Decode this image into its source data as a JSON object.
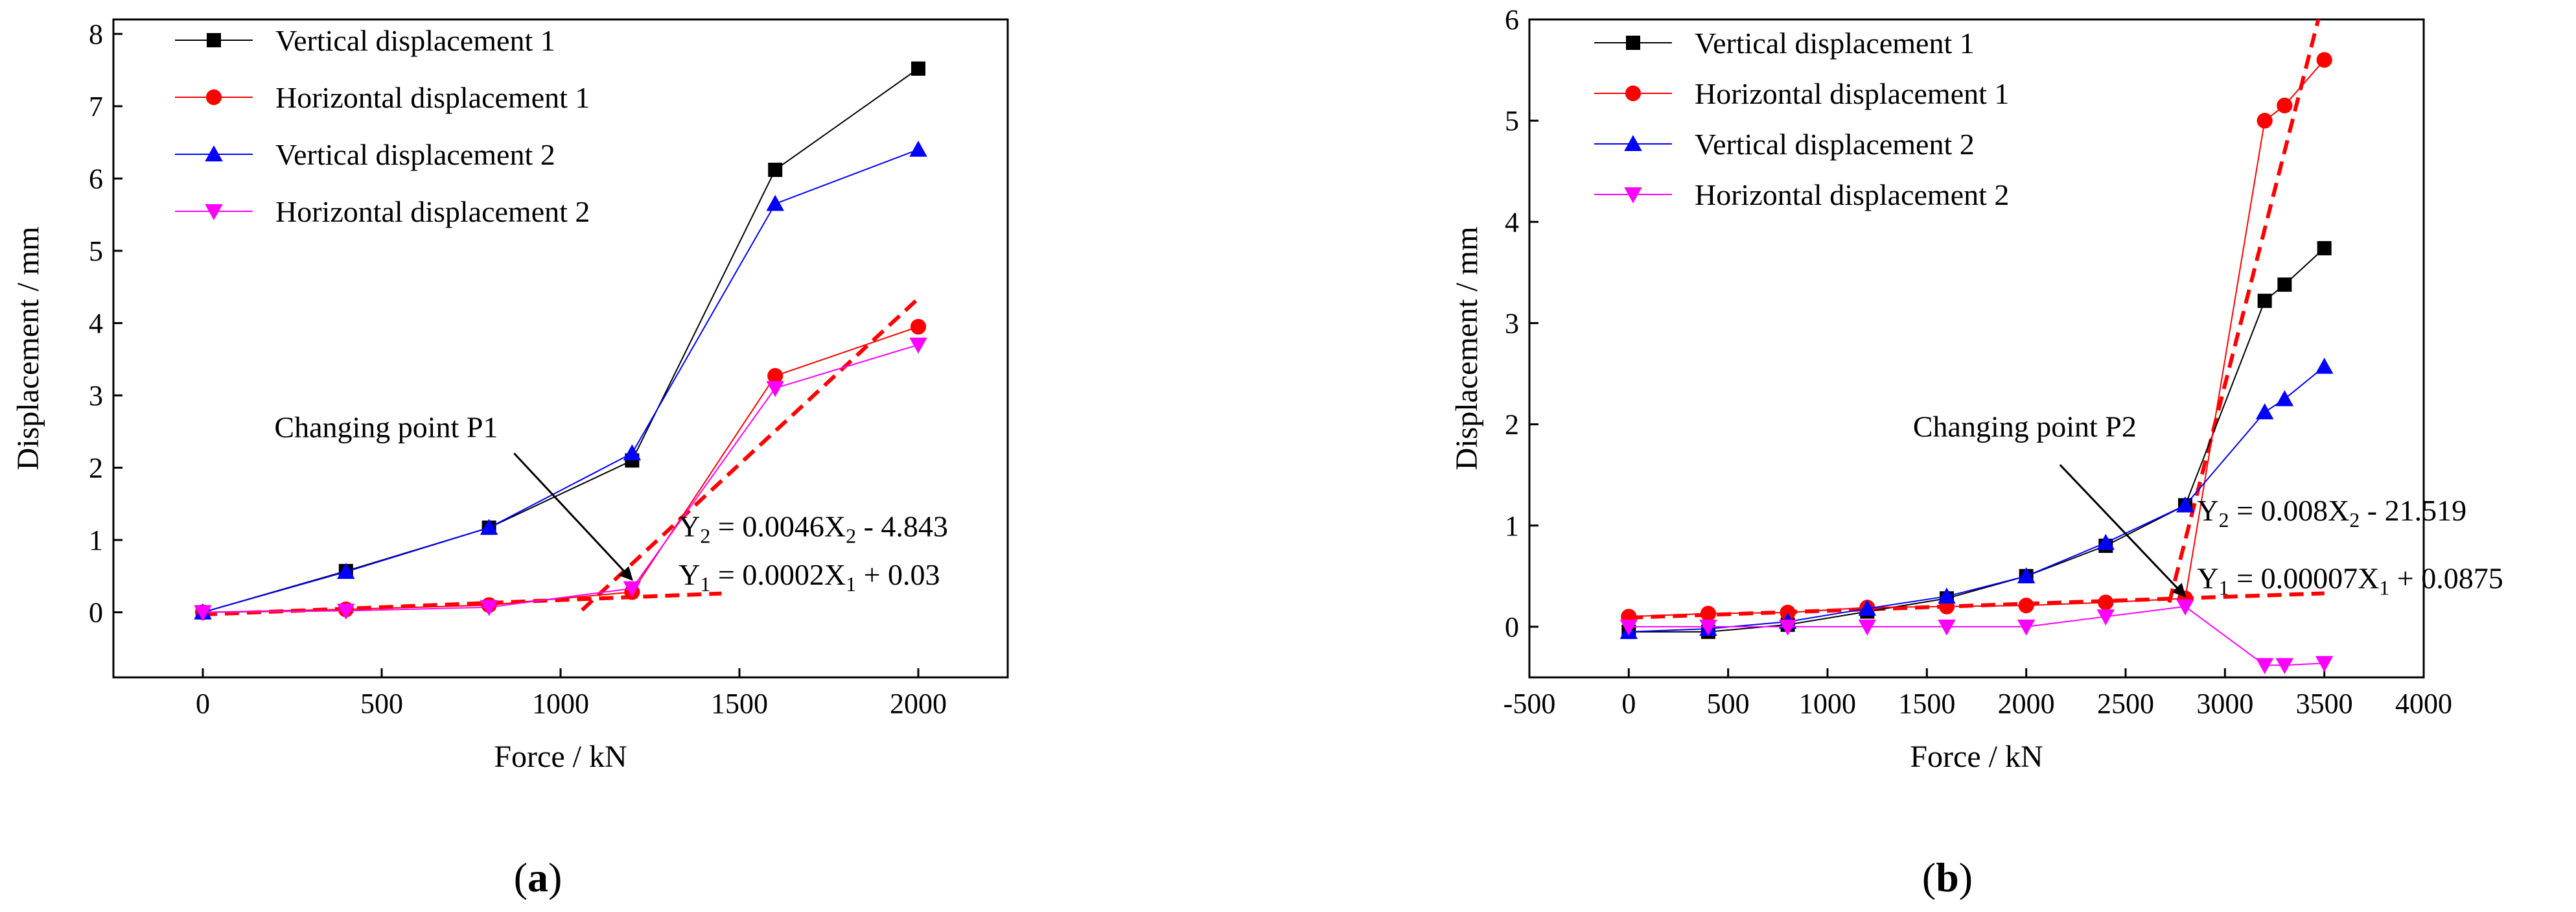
{
  "chart_data": [
    {
      "type": "line",
      "panel_label": "a",
      "panel_open": "(",
      "panel_close": ")",
      "xlabel": "Force / kN",
      "ylabel": "Displacement / mm",
      "xlim": [
        -250,
        2250
      ],
      "ylim": [
        -0.9,
        8.2
      ],
      "xticks": [
        0,
        500,
        1000,
        1500,
        2000
      ],
      "yticks": [
        0,
        1,
        2,
        3,
        4,
        5,
        6,
        7,
        8
      ],
      "legend_position": "top-left",
      "series": [
        {
          "name": "Vertical displacement 1",
          "color": "#000000",
          "marker": "square",
          "x": [
            0,
            400,
            800,
            1200,
            1600,
            2000
          ],
          "y": [
            0,
            0.57,
            1.17,
            2.1,
            6.12,
            7.52
          ]
        },
        {
          "name": "Horizontal displacement 1",
          "color": "#ff0000",
          "marker": "circle",
          "x": [
            0,
            400,
            800,
            1200,
            1600,
            2000
          ],
          "y": [
            0,
            0.04,
            0.1,
            0.28,
            3.27,
            3.95
          ]
        },
        {
          "name": "Vertical displacement 2",
          "color": "#0000ff",
          "marker": "triangle-up",
          "x": [
            0,
            400,
            800,
            1200,
            1600,
            2000
          ],
          "y": [
            0,
            0.56,
            1.17,
            2.2,
            5.65,
            6.4
          ]
        },
        {
          "name": "Horizontal displacement 2",
          "color": "#ff00ff",
          "marker": "triangle-down",
          "x": [
            0,
            400,
            800,
            1200,
            1600,
            2000
          ],
          "y": [
            0,
            0.02,
            0.07,
            0.33,
            3.1,
            3.7
          ]
        }
      ],
      "fit_lines": [
        {
          "name": "Y1 fit",
          "color": "#ff0000",
          "x": [
            0,
            1450
          ],
          "y": [
            -0.03,
            0.26
          ]
        },
        {
          "name": "Y2 fit",
          "color": "#ff0000",
          "x": [
            1060,
            2000
          ],
          "y": [
            0.03,
            4.34
          ]
        }
      ],
      "equations": [
        {
          "lhs": "Y",
          "lhs_sub": "2",
          "mid": " = 0.0046X",
          "var_sub": "2",
          "rest": " - 4.843",
          "x": 1330,
          "y": 1.05
        },
        {
          "lhs": "Y",
          "lhs_sub": "1",
          "mid": " = 0.0002X",
          "var_sub": "1",
          "rest": " + 0.03",
          "x": 1330,
          "y": 0.38
        }
      ],
      "annotation": {
        "text": "Changing point P1",
        "text_x": 200,
        "text_y": 2.42,
        "arrow_from": [
          870,
          2.2
        ],
        "arrow_to": [
          1200,
          0.45
        ]
      }
    },
    {
      "type": "line",
      "panel_label": "b",
      "panel_open": "(",
      "panel_close": ")",
      "xlabel": "Force / kN",
      "ylabel": "Displacement / mm",
      "xlim": [
        -500,
        4000
      ],
      "ylim": [
        -0.5,
        6
      ],
      "xticks": [
        -500,
        0,
        500,
        1000,
        1500,
        2000,
        2500,
        3000,
        3500,
        4000
      ],
      "yticks": [
        0,
        1,
        2,
        3,
        4,
        5,
        6
      ],
      "legend_position": "top-left",
      "series": [
        {
          "name": "Vertical displacement 1",
          "color": "#000000",
          "marker": "square",
          "x": [
            0,
            400,
            800,
            1200,
            1600,
            2000,
            2400,
            2800,
            3200,
            3300,
            3500
          ],
          "y": [
            -0.05,
            -0.05,
            0.02,
            0.15,
            0.28,
            0.5,
            0.8,
            1.2,
            3.22,
            3.38,
            3.74
          ]
        },
        {
          "name": "Horizontal displacement 1",
          "color": "#ff0000",
          "marker": "circle",
          "x": [
            0,
            400,
            800,
            1200,
            1600,
            2000,
            2400,
            2800,
            3200,
            3300,
            3500
          ],
          "y": [
            0.1,
            0.13,
            0.14,
            0.19,
            0.2,
            0.21,
            0.24,
            0.28,
            5.0,
            5.15,
            5.6
          ]
        },
        {
          "name": "Vertical displacement 2",
          "color": "#0000ff",
          "marker": "triangle-up",
          "x": [
            0,
            400,
            800,
            1200,
            1600,
            2000,
            2400,
            2800,
            3200,
            3300,
            3500
          ],
          "y": [
            -0.05,
            -0.02,
            0.05,
            0.18,
            0.3,
            0.5,
            0.83,
            1.2,
            2.12,
            2.25,
            2.57
          ]
        },
        {
          "name": "Horizontal displacement 2",
          "color": "#ff00ff",
          "marker": "triangle-down",
          "x": [
            0,
            400,
            800,
            1200,
            1600,
            2000,
            2400,
            2800,
            3200,
            3300,
            3500
          ],
          "y": [
            0,
            0,
            0,
            0,
            0,
            0,
            0.1,
            0.2,
            -0.38,
            -0.38,
            -0.36
          ]
        },
        {
          "name": "",
          "color": "#ff00ff",
          "marker": "none",
          "x": [],
          "y": []
        }
      ],
      "fit_lines": [
        {
          "name": "Y1 fit",
          "color": "#ff0000",
          "x": [
            0,
            3500
          ],
          "y": [
            0.09,
            0.33
          ]
        },
        {
          "name": "Y2 fit",
          "color": "#ff0000",
          "x": [
            2720,
            3480
          ],
          "y": [
            0.24,
            6.08
          ]
        }
      ],
      "equations": [
        {
          "lhs": "Y",
          "lhs_sub": "2",
          "mid": " = 0.008X",
          "var_sub": "2",
          "rest": " - 21.519",
          "x": 2860,
          "y": 1.05
        },
        {
          "lhs": "Y",
          "lhs_sub": "1",
          "mid": " = 0.00007X",
          "var_sub": "1",
          "rest": " + 0.0875",
          "x": 2860,
          "y": 0.38
        }
      ],
      "annotation": {
        "text": "Changing point P2",
        "text_x": 1430,
        "text_y": 1.88,
        "arrow_from": [
          2170,
          1.6
        ],
        "arrow_to": [
          2800,
          0.3
        ]
      }
    }
  ]
}
